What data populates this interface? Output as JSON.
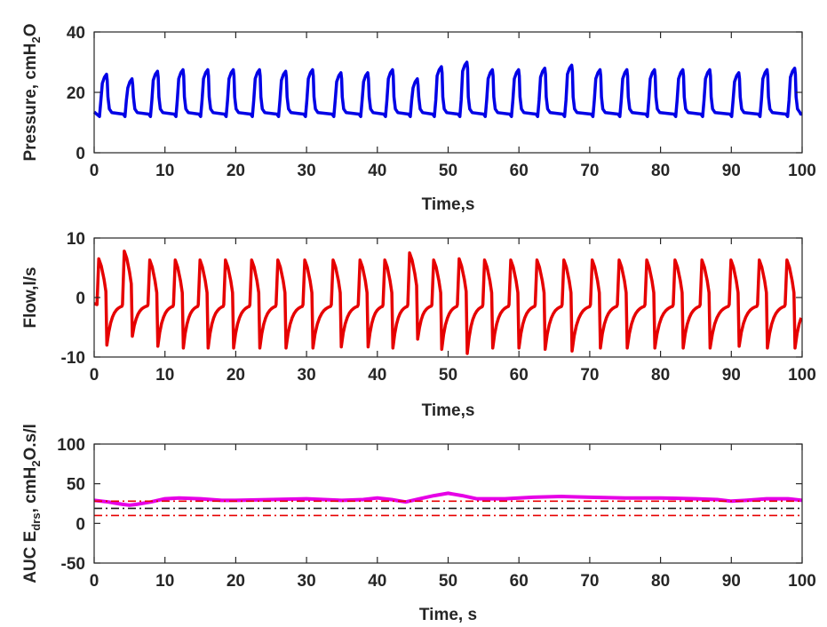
{
  "chart_data": [
    {
      "type": "line",
      "xlabel": "Time,s",
      "ylabel": "Pressure, cmH",
      "ylabel_sub": "2",
      "ylabel_tail": "O",
      "xlim": [
        0,
        100
      ],
      "ylim": [
        0,
        40
      ],
      "xticks": [
        "0",
        "10",
        "20",
        "30",
        "40",
        "50",
        "60",
        "70",
        "80",
        "90",
        "100"
      ],
      "yticks": [
        "0",
        "20",
        "40"
      ],
      "grid": false,
      "series": [
        {
          "color": "#0000e6",
          "breaths": [
            {
              "t": 0.9,
              "peak": 26
            },
            {
              "t": 4.5,
              "peak": 24.5
            },
            {
              "t": 8.1,
              "peak": 27
            },
            {
              "t": 11.7,
              "peak": 27.5
            },
            {
              "t": 15.2,
              "peak": 27.5
            },
            {
              "t": 18.8,
              "peak": 27.5
            },
            {
              "t": 22.5,
              "peak": 27.5
            },
            {
              "t": 26.2,
              "peak": 27
            },
            {
              "t": 30.0,
              "peak": 27.5
            },
            {
              "t": 34.0,
              "peak": 26.5
            },
            {
              "t": 37.8,
              "peak": 26.5
            },
            {
              "t": 41.3,
              "peak": 27.5
            },
            {
              "t": 44.8,
              "peak": 24.5
            },
            {
              "t": 48.2,
              "peak": 28.5
            },
            {
              "t": 51.8,
              "peak": 30
            },
            {
              "t": 55.4,
              "peak": 27.5
            },
            {
              "t": 59.1,
              "peak": 27.5
            },
            {
              "t": 62.8,
              "peak": 28
            },
            {
              "t": 66.6,
              "peak": 29
            },
            {
              "t": 70.6,
              "peak": 27.5
            },
            {
              "t": 74.4,
              "peak": 27.5
            },
            {
              "t": 78.3,
              "peak": 27.5
            },
            {
              "t": 82.3,
              "peak": 27.5
            },
            {
              "t": 86.1,
              "peak": 27.5
            },
            {
              "t": 90.2,
              "peak": 26.5
            },
            {
              "t": 94.2,
              "peak": 27.5
            },
            {
              "t": 98.1,
              "peak": 28
            }
          ],
          "baseline": 12.5
        }
      ]
    },
    {
      "type": "line",
      "xlabel": "Time,s",
      "ylabel": "Flow,l/s",
      "xlim": [
        0,
        100
      ],
      "ylim": [
        -10,
        10
      ],
      "xticks": [
        "0",
        "10",
        "20",
        "30",
        "40",
        "50",
        "60",
        "70",
        "80",
        "90",
        "100"
      ],
      "yticks": [
        "-10",
        "0",
        "10"
      ],
      "grid": false,
      "series": [
        {
          "color": "#e60000",
          "breaths": [
            {
              "t": 0.5,
              "peak": 6.5,
              "trough": -8
            },
            {
              "t": 4.1,
              "peak": 7.8,
              "trough": -6.5
            },
            {
              "t": 7.7,
              "peak": 6.3,
              "trough": -8.2
            },
            {
              "t": 11.3,
              "peak": 6.3,
              "trough": -8.5
            },
            {
              "t": 14.8,
              "peak": 6.3,
              "trough": -8.5
            },
            {
              "t": 18.4,
              "peak": 6.3,
              "trough": -8.5
            },
            {
              "t": 22.1,
              "peak": 6.3,
              "trough": -8.5
            },
            {
              "t": 25.8,
              "peak": 6.3,
              "trough": -8.5
            },
            {
              "t": 29.6,
              "peak": 6.3,
              "trough": -8.5
            },
            {
              "t": 33.6,
              "peak": 6.3,
              "trough": -8.3
            },
            {
              "t": 37.4,
              "peak": 6.3,
              "trough": -8.3
            },
            {
              "t": 40.9,
              "peak": 6.3,
              "trough": -8.5
            },
            {
              "t": 44.4,
              "peak": 7.5,
              "trough": -7.0
            },
            {
              "t": 47.8,
              "peak": 6.3,
              "trough": -8.7
            },
            {
              "t": 51.4,
              "peak": 6.5,
              "trough": -9.4
            },
            {
              "t": 55.0,
              "peak": 6.3,
              "trough": -8.5
            },
            {
              "t": 58.7,
              "peak": 6.3,
              "trough": -8.5
            },
            {
              "t": 62.4,
              "peak": 6.3,
              "trough": -8.7
            },
            {
              "t": 66.2,
              "peak": 6.3,
              "trough": -9.0
            },
            {
              "t": 70.2,
              "peak": 6.3,
              "trough": -8.5
            },
            {
              "t": 74.0,
              "peak": 6.3,
              "trough": -8.5
            },
            {
              "t": 77.9,
              "peak": 6.3,
              "trough": -8.5
            },
            {
              "t": 81.9,
              "peak": 6.3,
              "trough": -8.5
            },
            {
              "t": 85.7,
              "peak": 6.3,
              "trough": -8.5
            },
            {
              "t": 89.8,
              "peak": 6.3,
              "trough": -8.2
            },
            {
              "t": 93.8,
              "peak": 6.3,
              "trough": -8.5
            },
            {
              "t": 97.7,
              "peak": 6.3,
              "trough": -8.5
            }
          ]
        }
      ]
    },
    {
      "type": "line",
      "xlabel": "Time, s",
      "ylabel": "AUC E",
      "ylabel_sub": "drs",
      "ylabel_tail": ", cmH",
      "ylabel_sub2": "2",
      "ylabel_tail2": "O.s/l",
      "xlim": [
        0,
        100
      ],
      "ylim": [
        -50,
        100
      ],
      "xticks": [
        "0",
        "10",
        "20",
        "30",
        "40",
        "50",
        "60",
        "70",
        "80",
        "90",
        "100"
      ],
      "yticks": [
        "-50",
        "0",
        "50",
        "100"
      ],
      "grid": false,
      "series": [
        {
          "color": "#e600e6",
          "x": [
            0,
            2,
            4,
            5,
            6,
            8,
            10,
            12,
            15,
            18,
            20,
            25,
            30,
            35,
            38,
            40,
            42,
            44,
            46,
            48,
            50,
            52,
            54,
            58,
            62,
            66,
            70,
            75,
            80,
            85,
            88,
            90,
            92,
            95,
            98,
            100
          ],
          "y": [
            29,
            27,
            24,
            23,
            24,
            27,
            31,
            32,
            31,
            29,
            29,
            30,
            31,
            29,
            30,
            32,
            30,
            27,
            31,
            35,
            38,
            35,
            31,
            31,
            33,
            34,
            33,
            32,
            32,
            31,
            30,
            28,
            29,
            31,
            31,
            29
          ]
        },
        {
          "color": "#e60000",
          "style": "dashdot",
          "x": [
            0,
            100
          ],
          "y": [
            28,
            28
          ]
        },
        {
          "color": "#1a1a1a",
          "style": "dashdot",
          "x": [
            0,
            100
          ],
          "y": [
            19,
            19
          ]
        },
        {
          "color": "#e60000",
          "style": "dashdot",
          "x": [
            0,
            100
          ],
          "y": [
            10,
            10
          ]
        }
      ]
    }
  ]
}
